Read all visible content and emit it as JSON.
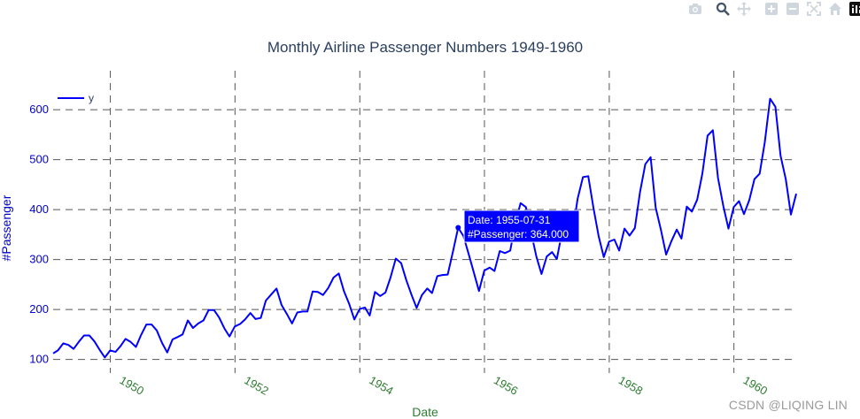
{
  "toolbar": {
    "buttons": [
      {
        "name": "camera-icon",
        "title": "Download plot as a png"
      },
      {
        "name": "zoom-icon",
        "title": "Zoom"
      },
      {
        "name": "pan-icon",
        "title": "Pan"
      },
      {
        "name": "zoom-in-icon",
        "title": "Zoom in"
      },
      {
        "name": "zoom-out-icon",
        "title": "Zoom out"
      },
      {
        "name": "autoscale-icon",
        "title": "Autoscale"
      },
      {
        "name": "reset-axes-icon",
        "title": "Reset axes"
      },
      {
        "name": "plotly-logo-icon",
        "title": "Produced with Plotly"
      }
    ]
  },
  "chart_data": {
    "type": "line",
    "title": "Monthly Airline Passenger Numbers 1949-1960",
    "xlabel": "Date",
    "ylabel": "#Passenger",
    "x_start": "1949-01",
    "x_end": "1960-12",
    "xlim": [
      "1949-01-31",
      "1960-12-31"
    ],
    "ylim": [
      94,
      664
    ],
    "x_ticks": [
      "1950",
      "1952",
      "1954",
      "1956",
      "1958",
      "1960"
    ],
    "y_ticks": [
      "100",
      "200",
      "300",
      "400",
      "500",
      "600"
    ],
    "grid": true,
    "legend_position": "top-left",
    "series": [
      {
        "name": "y",
        "color": "#0000ff",
        "values": [
          112,
          118,
          132,
          129,
          121,
          135,
          148,
          148,
          136,
          119,
          104,
          118,
          115,
          126,
          141,
          135,
          125,
          149,
          170,
          170,
          158,
          133,
          114,
          140,
          145,
          150,
          178,
          163,
          172,
          178,
          199,
          199,
          184,
          162,
          146,
          166,
          171,
          180,
          193,
          181,
          183,
          218,
          230,
          242,
          209,
          191,
          172,
          194,
          196,
          196,
          236,
          235,
          229,
          243,
          264,
          272,
          237,
          211,
          180,
          201,
          204,
          188,
          235,
          227,
          234,
          264,
          302,
          293,
          259,
          229,
          203,
          229,
          242,
          233,
          267,
          269,
          270,
          315,
          364,
          347,
          312,
          274,
          237,
          278,
          284,
          277,
          317,
          313,
          318,
          374,
          413,
          405,
          355,
          306,
          271,
          306,
          315,
          301,
          356,
          348,
          355,
          422,
          465,
          467,
          404,
          347,
          305,
          336,
          340,
          318,
          362,
          348,
          363,
          435,
          491,
          505,
          404,
          359,
          310,
          337,
          360,
          342,
          406,
          396,
          420,
          472,
          548,
          559,
          463,
          407,
          362,
          405,
          417,
          391,
          419,
          461,
          472,
          535,
          622,
          606,
          508,
          461,
          390,
          432
        ]
      }
    ],
    "hover": {
      "index": 78,
      "date_label": "Date: 1955-07-31",
      "value_label": "#Passenger: 364.000"
    }
  },
  "watermark": "CSDN @LIQING LIN"
}
